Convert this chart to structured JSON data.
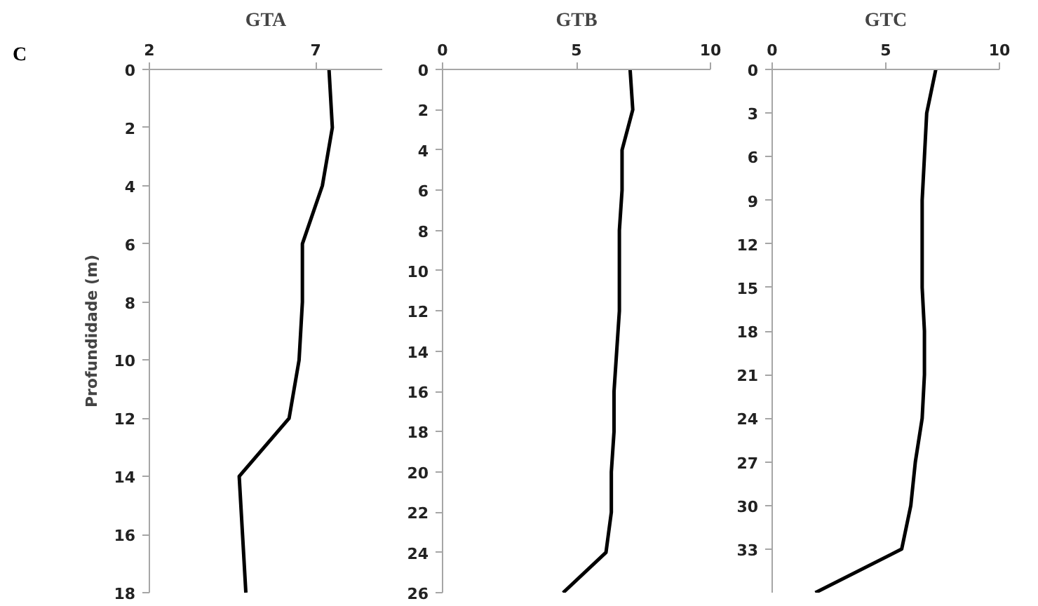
{
  "chart_data": [
    {
      "type": "line",
      "title": "GTA",
      "ylabel": "Profundidade (m)",
      "annotations": [
        "C"
      ],
      "xlim": [
        2,
        9
      ],
      "xticks": [
        2,
        7
      ],
      "ylim": [
        18,
        0
      ],
      "yticks": [
        0,
        2,
        4,
        6,
        8,
        10,
        12,
        14,
        16,
        18
      ],
      "series": [
        {
          "color": "#000000",
          "x": [
            7.4,
            7.5,
            7.2,
            6.6,
            6.6,
            6.5,
            6.2,
            4.7,
            4.8,
            4.9
          ],
          "values": [
            0,
            2,
            4,
            6,
            8,
            10,
            12,
            14,
            16,
            18
          ]
        }
      ]
    },
    {
      "type": "line",
      "title": "GTB",
      "xlim": [
        0,
        10
      ],
      "xticks": [
        0,
        5,
        10
      ],
      "ylim": [
        26,
        0
      ],
      "yticks": [
        0,
        2,
        4,
        6,
        8,
        10,
        12,
        14,
        16,
        18,
        20,
        22,
        24,
        26
      ],
      "series": [
        {
          "color": "#000000",
          "x": [
            7.0,
            7.1,
            6.7,
            6.7,
            6.6,
            6.6,
            6.6,
            6.5,
            6.4,
            6.4,
            6.3,
            6.3,
            6.1,
            4.5
          ],
          "values": [
            0,
            2,
            4,
            6,
            8,
            10,
            12,
            14,
            16,
            18,
            20,
            22,
            24,
            26
          ]
        }
      ]
    },
    {
      "type": "line",
      "title": "GTC",
      "xlim": [
        0,
        10
      ],
      "xticks": [
        0,
        5,
        10
      ],
      "ylim": [
        36,
        0
      ],
      "yticks": [
        0,
        3,
        6,
        9,
        12,
        15,
        18,
        21,
        24,
        27,
        30,
        33
      ],
      "series": [
        {
          "color": "#000000",
          "x": [
            7.2,
            6.8,
            6.7,
            6.6,
            6.6,
            6.6,
            6.7,
            6.7,
            6.6,
            6.3,
            6.1,
            5.7,
            1.9
          ],
          "values": [
            0,
            3,
            6,
            9,
            12,
            15,
            18,
            21,
            24,
            27,
            30,
            33,
            36
          ]
        }
      ]
    }
  ]
}
